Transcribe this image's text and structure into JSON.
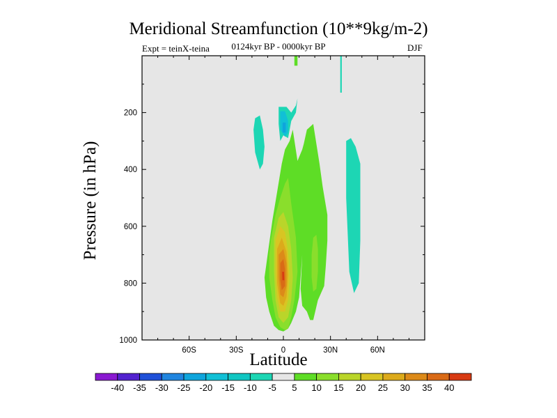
{
  "chart_data": {
    "type": "heatmap",
    "title": "Meridional Streamfunction (10**9kg/m-2)",
    "left_string": "Expt = teinX-teina",
    "center_string": "0124kyr BP - 0000kyr BP",
    "right_string": "DJF",
    "xlabel": "Latitude",
    "ylabel": "Pressure (in hPa)",
    "xlim": [
      -90,
      90
    ],
    "ylim": [
      1000,
      0
    ],
    "x_ticks": [
      {
        "value": -60,
        "label": "60S"
      },
      {
        "value": -30,
        "label": "30S"
      },
      {
        "value": 0,
        "label": "0"
      },
      {
        "value": 30,
        "label": "30N"
      },
      {
        "value": 60,
        "label": "60N"
      }
    ],
    "y_ticks": [
      {
        "value": 200,
        "label": "200"
      },
      {
        "value": 400,
        "label": "400"
      },
      {
        "value": 600,
        "label": "600"
      },
      {
        "value": 800,
        "label": "800"
      },
      {
        "value": 1000,
        "label": "1000"
      }
    ],
    "background_color": "#e6e6e6",
    "colorbar": {
      "levels": [
        "-40",
        "-35",
        "-30",
        "-25",
        "-20",
        "-15",
        "-10",
        "-5",
        "5",
        "10",
        "15",
        "20",
        "25",
        "30",
        "35",
        "40"
      ],
      "colors": [
        "#8a19d1",
        "#5222cf",
        "#1f50d8",
        "#2085df",
        "#0fa5dc",
        "#11c0d6",
        "#10c6c2",
        "#1dd6b4",
        "#e6e6e6",
        "#5edd26",
        "#8ade2c",
        "#bad52a",
        "#d8c523",
        "#dcaa1b",
        "#dc8a19",
        "#d96a16",
        "#d73a12"
      ]
    },
    "contours": [
      {
        "name": "upper-left-negative",
        "level": -10,
        "color": "#1dd6b4",
        "lat": [
          -18,
          -15,
          -13,
          -12,
          -13,
          -15,
          -18,
          -19
        ],
        "p": [
          220,
          210,
          260,
          320,
          380,
          400,
          340,
          260
        ]
      },
      {
        "name": "upper-center-negative",
        "level": -10,
        "color": "#1dd6b4",
        "lat": [
          -3,
          2,
          5,
          8,
          9,
          8,
          5,
          3,
          0,
          -2,
          -3
        ],
        "p": [
          180,
          180,
          200,
          175,
          150,
          200,
          230,
          290,
          280,
          300,
          240
        ]
      },
      {
        "name": "upper-center-core",
        "level": -15,
        "color": "#11c0d6",
        "lat": [
          -2,
          1,
          3,
          3,
          1,
          -2
        ],
        "p": [
          195,
          195,
          230,
          270,
          285,
          260
        ]
      },
      {
        "name": "upper-center-core-2",
        "level": -20,
        "color": "#0fa5dc",
        "lat": [
          -0.5,
          1.5,
          1.5,
          -0.5
        ],
        "p": [
          235,
          235,
          270,
          270
        ]
      },
      {
        "name": "right-negative",
        "level": -10,
        "color": "#1dd6b4",
        "lat": [
          40,
          43,
          46,
          49,
          49,
          48,
          45,
          42,
          40
        ],
        "p": [
          300,
          290,
          320,
          380,
          650,
          800,
          835,
          760,
          500
        ]
      },
      {
        "name": "top-thin-positive",
        "level": 5,
        "color": "#5edd26",
        "lat": [
          7,
          9,
          9,
          7
        ],
        "p": [
          0,
          0,
          35,
          35
        ]
      },
      {
        "name": "top-thin-negative",
        "level": -10,
        "color": "#1dd6b4",
        "lat": [
          36.2,
          37.2,
          37.2,
          36.2
        ],
        "p": [
          0,
          0,
          130,
          130
        ]
      },
      {
        "name": "main-positive",
        "level": 5,
        "color": "#5edd26",
        "lat": [
          -10,
          -7,
          -4,
          -1,
          1,
          4,
          6,
          9,
          12,
          13,
          15,
          19,
          21,
          23,
          25,
          28,
          28,
          27,
          26,
          22,
          19,
          17,
          15,
          12,
          11,
          12,
          10,
          8,
          5,
          3,
          0,
          -3,
          -6,
          -9,
          -11,
          -12,
          -11
        ],
        "p": [
          700,
          580,
          480,
          380,
          330,
          300,
          260,
          370,
          330,
          310,
          260,
          240,
          310,
          380,
          460,
          560,
          650,
          740,
          810,
          860,
          930,
          930,
          900,
          880,
          820,
          700,
          850,
          900,
          940,
          960,
          970,
          965,
          950,
          900,
          850,
          780,
          740
        ]
      },
      {
        "name": "main-positive-10",
        "level": 10,
        "color": "#8ade2c",
        "lat": [
          -8,
          -5,
          -2,
          1,
          3,
          5,
          8,
          9,
          7,
          5,
          3,
          1,
          -2,
          -5,
          -7,
          -9,
          -9
        ],
        "p": [
          650,
          560,
          500,
          450,
          430,
          520,
          640,
          760,
          860,
          920,
          960,
          965,
          955,
          920,
          860,
          780,
          700
        ]
      },
      {
        "name": "right-positive-10",
        "level": 10,
        "color": "#8ade2c",
        "lat": [
          19,
          21,
          22,
          22,
          21,
          19,
          18,
          18
        ],
        "p": [
          640,
          630,
          680,
          760,
          820,
          830,
          780,
          700
        ]
      },
      {
        "name": "main-positive-15",
        "level": 15,
        "color": "#bad52a",
        "lat": [
          -6,
          -3,
          0,
          3,
          5,
          6,
          5,
          3,
          0,
          -3,
          -5,
          -6
        ],
        "p": [
          640,
          570,
          550,
          600,
          680,
          780,
          860,
          920,
          940,
          920,
          860,
          760
        ]
      },
      {
        "name": "main-positive-20",
        "level": 20,
        "color": "#d8c523",
        "lat": [
          -5,
          -2,
          1,
          3,
          4,
          3,
          1,
          -2,
          -4,
          -5
        ],
        "p": [
          650,
          600,
          620,
          690,
          780,
          860,
          900,
          900,
          850,
          760
        ]
      },
      {
        "name": "main-positive-25",
        "level": 25,
        "color": "#dcaa1b",
        "lat": [
          -4,
          -1,
          2,
          3,
          2,
          0,
          -2,
          -4
        ],
        "p": [
          680,
          640,
          690,
          770,
          850,
          880,
          870,
          800
        ]
      },
      {
        "name": "main-positive-30",
        "level": 30,
        "color": "#dc8a19",
        "lat": [
          -3,
          0,
          2,
          2,
          0,
          -2,
          -3
        ],
        "p": [
          700,
          680,
          730,
          810,
          850,
          840,
          780
        ]
      },
      {
        "name": "main-positive-35",
        "level": 35,
        "color": "#d96a16",
        "lat": [
          -2,
          0,
          1,
          1,
          -1,
          -2
        ],
        "p": [
          730,
          715,
          750,
          810,
          825,
          790
        ]
      },
      {
        "name": "main-positive-40",
        "level": 40,
        "color": "#d73a12",
        "lat": [
          -0.8,
          0.4,
          0.6,
          -0.6
        ],
        "p": [
          760,
          760,
          790,
          790
        ]
      }
    ]
  }
}
